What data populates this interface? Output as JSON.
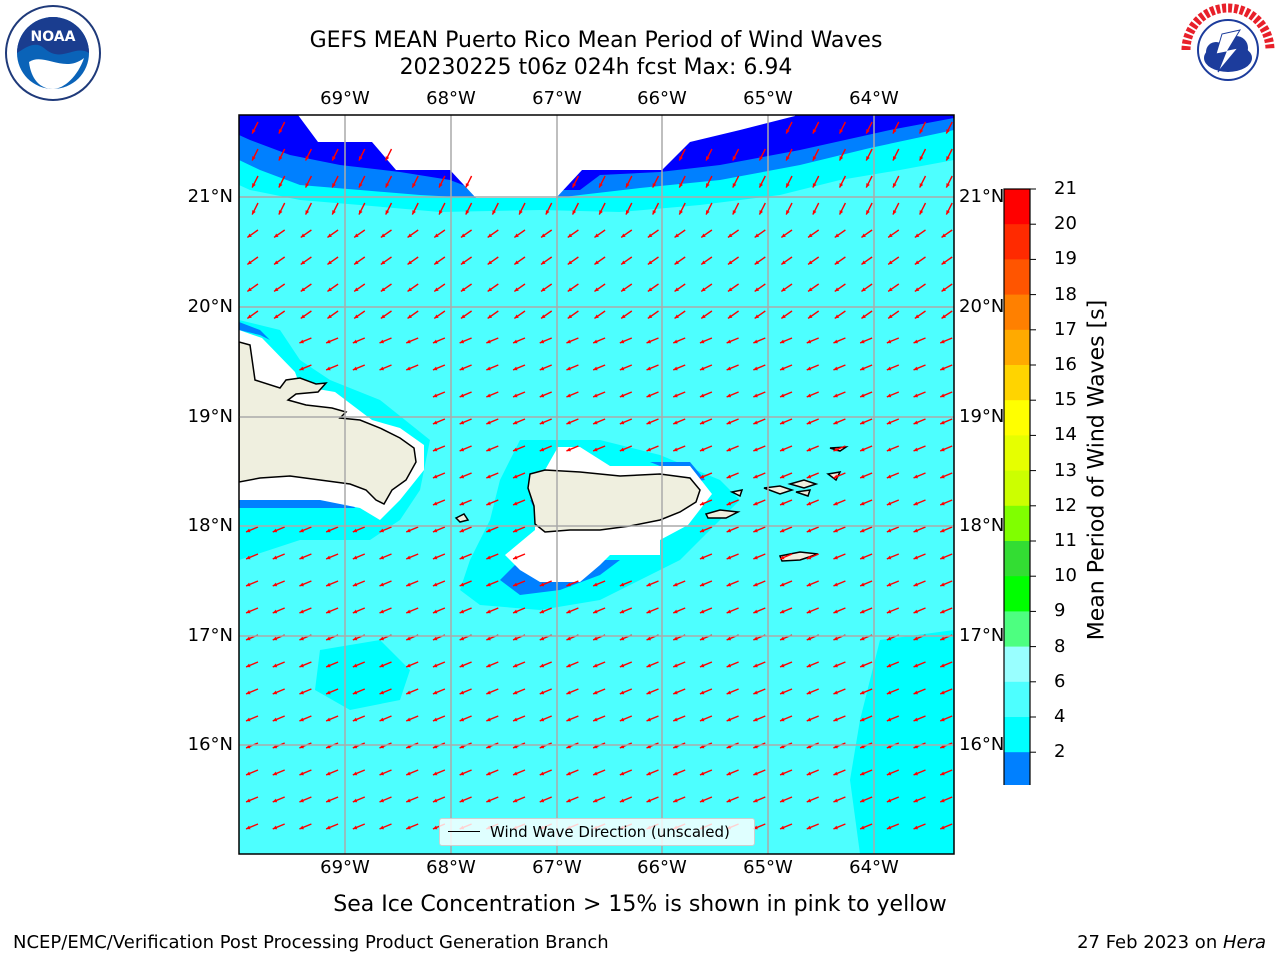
{
  "title_line1": "GEFS MEAN Puerto Rico Mean Period of Wind Waves",
  "title_line2": "20230225 t06z 024h fcst   Max: 6.94",
  "lon_labels": [
    "69°W",
    "68°W",
    "67°W",
    "66°W",
    "65°W",
    "64°W"
  ],
  "lat_labels": [
    "21°N",
    "20°N",
    "19°N",
    "18°N",
    "17°N",
    "16°N"
  ],
  "legend_label": "Wind Wave Direction (unscaled)",
  "colorbar": {
    "label": "Mean Period of Wind Waves [s]",
    "ticks": [
      "21",
      "20",
      "19",
      "18",
      "17",
      "16",
      "15",
      "14",
      "13",
      "12",
      "11",
      "10",
      "9",
      "8",
      "6",
      "4",
      "2"
    ],
    "colors": [
      "#ff0000",
      "#ff2a00",
      "#ff5500",
      "#ff8000",
      "#ffaa00",
      "#ffd400",
      "#ffff00",
      "#e6ff00",
      "#ccff00",
      "#80ff00",
      "#33dd33",
      "#00ff00",
      "#4dff80",
      "#99ffff",
      "#4dffff",
      "#00ffff",
      "#0080ff",
      "#0000ff"
    ]
  },
  "map_colors": {
    "ocean_4_6": "#00ffff",
    "ocean_6_8": "#4dffff",
    "ocean_2_4": "#0080ff",
    "ocean_lt2": "#0000ff",
    "land": "#efefdf",
    "arrow": "#ff0000"
  },
  "note": "Sea Ice Concentration > 15% is shown in pink to yellow",
  "footer_left": "NCEP/EMC/Verification Post Processing Product Generation Branch",
  "footer_right_date": "27 Feb 2023 on ",
  "footer_right_host": "Hera",
  "logos": {
    "left": "NOAA",
    "right": "NATIONAL WEATHER SERVICE"
  }
}
